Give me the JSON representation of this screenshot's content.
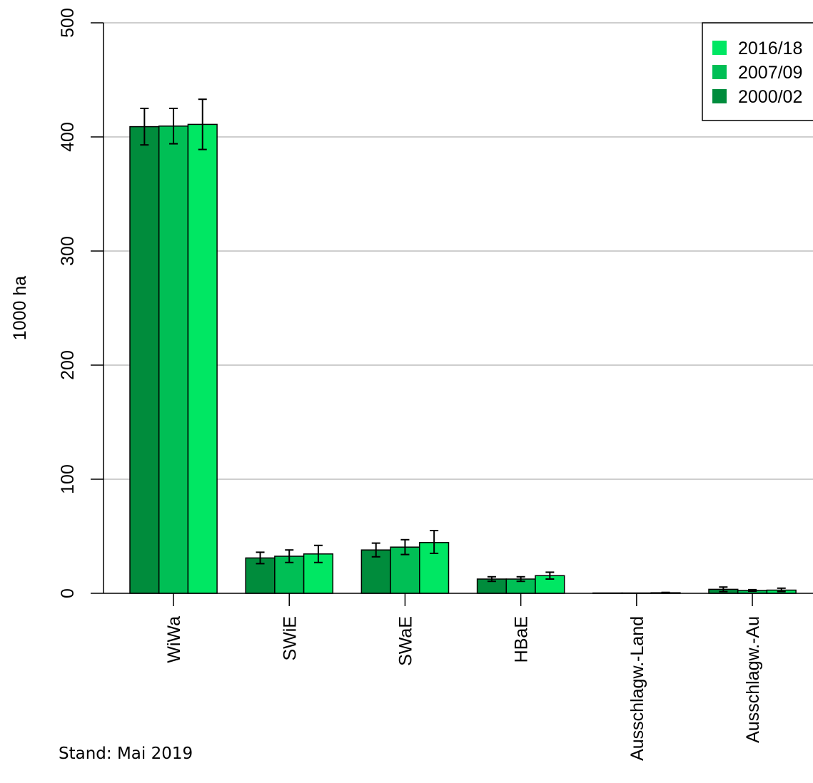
{
  "chart_data": {
    "type": "bar",
    "ylabel": "1000 ha",
    "ylim": [
      0,
      500
    ],
    "yticks": [
      "0",
      "100",
      "200",
      "300",
      "400",
      "500"
    ],
    "grid": true,
    "legend_position": "top-right",
    "categories": [
      "WiWa",
      "SWiE",
      "SWaE",
      "HBaE",
      "Ausschlagw.-Land",
      "Ausschlagw.-Au"
    ],
    "series": [
      {
        "name": "2000/02",
        "color": "#008c3c",
        "values": [
          409,
          31,
          38,
          12.5,
          0.3,
          3.5
        ],
        "err_low": [
          393,
          26,
          32,
          10.5,
          0.1,
          1.5
        ],
        "err_high": [
          425,
          36,
          44,
          14.5,
          0.5,
          5.5
        ]
      },
      {
        "name": "2007/09",
        "color": "#00bf55",
        "values": [
          409.5,
          32.5,
          40.5,
          12.5,
          0.3,
          2.5
        ],
        "err_low": [
          394,
          27,
          34,
          10.5,
          0.1,
          1.8
        ],
        "err_high": [
          425,
          38,
          47,
          14.5,
          0.5,
          3.2
        ]
      },
      {
        "name": "2016/18",
        "color": "#00e763",
        "values": [
          411,
          34.5,
          44.5,
          15.5,
          0.5,
          2.8
        ],
        "err_low": [
          389,
          27,
          35,
          12.5,
          0.2,
          1.5
        ],
        "err_high": [
          433,
          42,
          55,
          18.5,
          0.8,
          4.5
        ]
      }
    ]
  },
  "footnote": "Stand: Mai 2019"
}
